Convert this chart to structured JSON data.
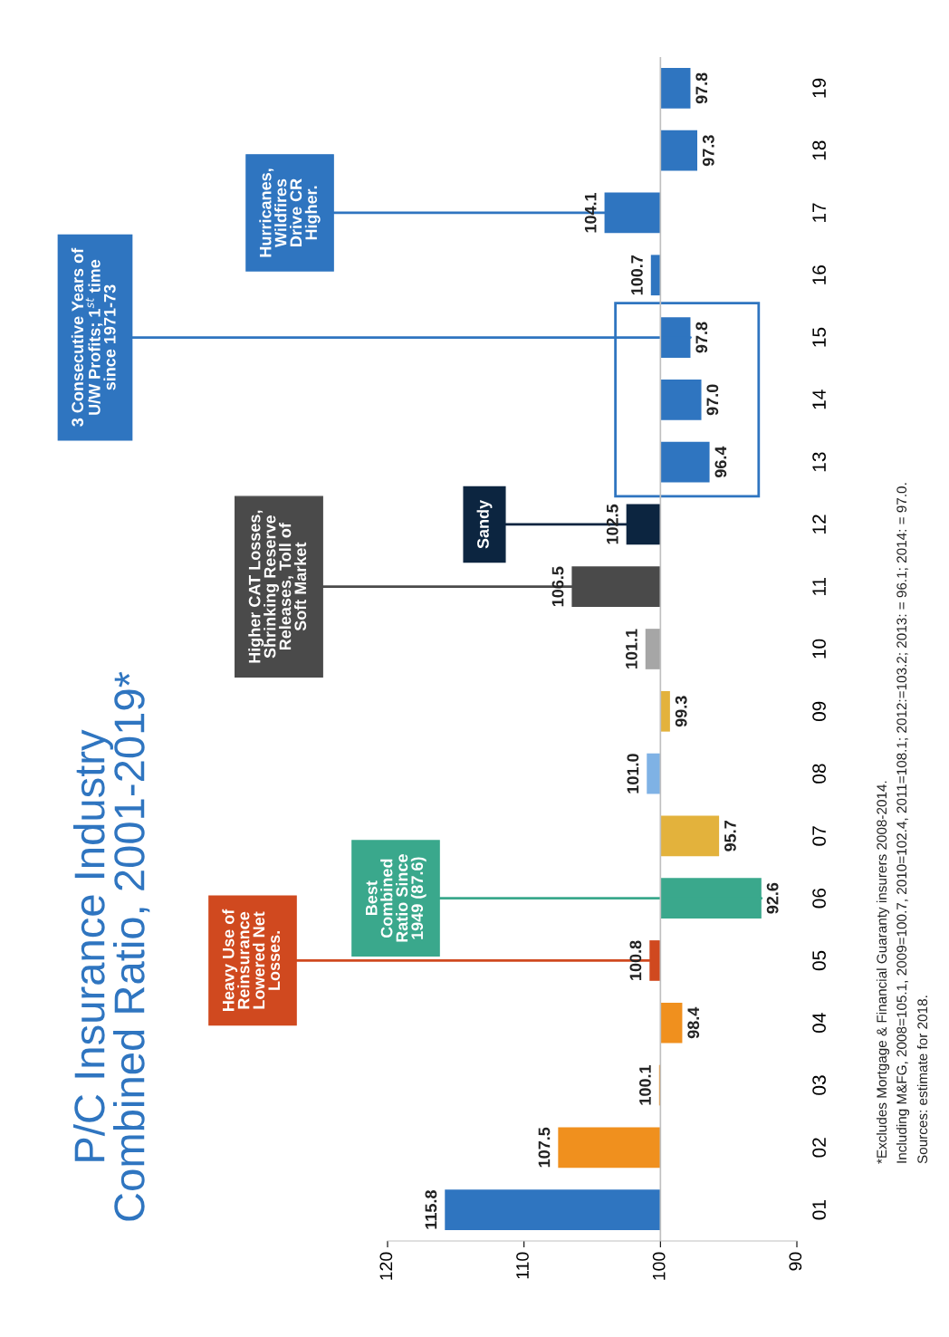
{
  "chart_data": {
    "type": "bar",
    "orientation": "horizontal",
    "title": "P/C Insurance Industry\nCombined Ratio, 2001-2019*",
    "categories": [
      "19",
      "18",
      "17",
      "16",
      "15",
      "14",
      "13",
      "12",
      "11",
      "10",
      "09",
      "08",
      "07",
      "06",
      "05",
      "04",
      "03",
      "02",
      "01"
    ],
    "base": [
      100,
      100,
      100,
      100,
      100,
      100,
      100,
      100,
      100,
      100,
      100,
      100,
      100,
      100,
      100,
      100,
      100,
      100,
      100
    ],
    "values": [
      -2.2,
      -2.7,
      4.1,
      0.7,
      -2.2,
      -3.0,
      -3.6,
      2.5,
      6.5,
      1.1,
      -0.7,
      1.0,
      -4.3,
      -7.4,
      0.8,
      -1.6,
      0.1,
      7.5,
      15.8
    ],
    "value_labels": [
      "97.8",
      "97.3",
      "104.1",
      "100.7",
      "97.8",
      "97.0",
      "96.4",
      "102.5",
      "106.5",
      "101.1",
      "99.3",
      "101.0",
      "95.7",
      "92.6",
      "100.8",
      "98.4",
      "100.1",
      "107.5",
      "115.8"
    ],
    "colors": [
      "#2f75c0",
      "#2f75c0",
      "#2f75c0",
      "#2f75c0",
      "#2f75c0",
      "#2f75c0",
      "#2f75c0",
      "#0c2540",
      "#4a4a4a",
      "#a6a6a6",
      "#e3b23c",
      "#7fb2e5",
      "#e3b23c",
      "#3aa88c",
      "#d0491f",
      "#f0901e",
      "#f0901e",
      "#f0901e",
      "#2f75c0"
    ],
    "xlim": [
      120,
      90
    ],
    "xticks": [
      120,
      110,
      100,
      90
    ],
    "ref_lines": [
      {
        "axis": "x",
        "value": 100,
        "color": "#bfbfbf"
      }
    ],
    "annotations": [
      {
        "text": "Heavy Use of\nReinsurance\nLowered Net\nLosses.",
        "x": 100.8,
        "y": "05"
      },
      {
        "text": "Best\nCombined\nRatio Since\n1949 (87.6)",
        "x": 92.6,
        "y": "06"
      },
      {
        "text": "Higher CAT Losses,\nShrinking Reserve\nReleases, Toll of\nSoft Market",
        "x": 106.5,
        "y": "11"
      },
      {
        "text": "Sandy",
        "x": 102.5,
        "y": "12"
      },
      {
        "text": "3 Consecutive Years of\nU/W Profits; 1$^{st}$ time\nsince 1971-73",
        "x": 97.8,
        "y": "15"
      },
      {
        "text": "Hurricanes,\nWildfires\nDrive CR\nHigher.",
        "x": 104.1,
        "y": "17"
      },
      "*Excludes Mortgage & Financial Guaranty insurers 2008-2014.",
      "Including M&FG, 2008=105.1, 2009=100.7, 2010=102.4, 2011=108.1; 2012:=103.2; 2013: = 96.1; 2014: = 97.0.",
      "Sources: estimate for 2018."
    ]
  }
}
